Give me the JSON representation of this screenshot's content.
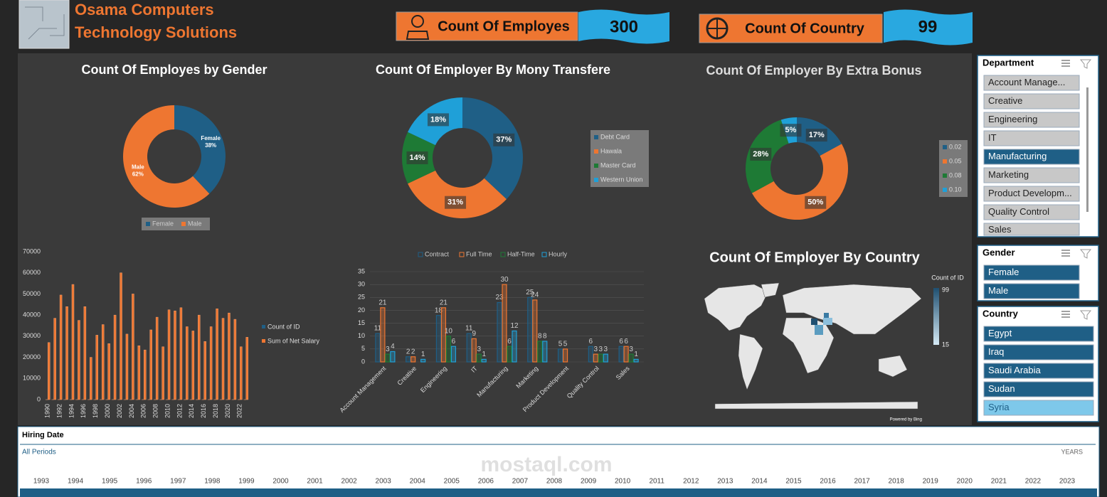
{
  "header": {
    "title_line1": "Osama Computers",
    "title_line2": "Technology Solutions"
  },
  "kpis": [
    {
      "label": "Count Of Employes",
      "value": 300
    },
    {
      "label": "Count Of Country",
      "value": 99
    }
  ],
  "chart_data": [
    {
      "type": "donut",
      "title": "Count Of Employes by Gender",
      "categories": [
        "Female",
        "Male"
      ],
      "values": [
        38,
        62
      ],
      "value_labels": [
        "38%",
        "62%"
      ],
      "colors": [
        "#1f5f86",
        "#ee7631"
      ],
      "show_category_in_label": true,
      "legend": "bottom"
    },
    {
      "type": "donut",
      "title": "Count Of Employer By Mony Transfere",
      "categories": [
        "Debt Card",
        "Hawala",
        "Master Card",
        "Western Union"
      ],
      "values": [
        37,
        31,
        14,
        18
      ],
      "value_labels": [
        "37%",
        "31%",
        "14%",
        "18%"
      ],
      "colors": [
        "#1f5f86",
        "#ee7631",
        "#1e7a35",
        "#1fa0d8"
      ],
      "legend": "right"
    },
    {
      "type": "donut",
      "title": "Count Of Employer By Extra Bonus",
      "categories": [
        "0.02",
        "0.05",
        "0.08",
        "0.10"
      ],
      "values": [
        17,
        50,
        28,
        5
      ],
      "value_labels": [
        "17%",
        "50%",
        "28%",
        "5%"
      ],
      "colors": [
        "#1f5f86",
        "#ee7631",
        "#1e7a35",
        "#1fa0d8"
      ],
      "legend": "right"
    },
    {
      "type": "bar",
      "categories": [
        "1990",
        null,
        "1992",
        null,
        "1994",
        null,
        "1996",
        null,
        "1998",
        null,
        "2000",
        null,
        "2002",
        null,
        "2004",
        null,
        "2006",
        null,
        "2008",
        null,
        "2010",
        null,
        "2012",
        null,
        "2014",
        null,
        "2016",
        null,
        "2018",
        null,
        "2020",
        null,
        "2022",
        null
      ],
      "series": [
        {
          "name": "Count of ID",
          "color": "#1f5f86",
          "values": [
            9,
            9,
            9,
            9,
            9,
            9,
            9,
            9,
            9,
            9,
            9,
            9,
            9,
            9,
            9,
            9,
            9,
            9,
            9,
            9,
            9,
            9,
            9,
            9,
            9,
            9,
            9,
            9,
            9,
            9,
            9,
            9,
            9,
            9
          ]
        },
        {
          "name": "Sum of Net Salary",
          "color": "#ee7631",
          "values": [
            27000,
            38500,
            49500,
            44000,
            54500,
            37500,
            44000,
            20000,
            30500,
            35500,
            26500,
            40000,
            60000,
            31000,
            50000,
            25500,
            23500,
            33000,
            39000,
            25000,
            42500,
            42000,
            43500,
            34500,
            32500,
            40000,
            27500,
            34500,
            43000,
            38500,
            41000,
            38000,
            25000,
            29500
          ]
        }
      ],
      "ylim": [
        0,
        70000
      ],
      "yticks": [
        0,
        10000,
        20000,
        30000,
        40000,
        50000,
        60000,
        70000
      ],
      "legend": "right"
    },
    {
      "type": "grouped_bar",
      "categories": [
        "Account Management",
        "Creative",
        "Engineering",
        "IT",
        "Manufacturing",
        "Marketing",
        "Product Development",
        "Quality Control",
        "Sales"
      ],
      "series": [
        {
          "name": "Contract",
          "color": "#1f5f86",
          "values": [
            11,
            2,
            18,
            11,
            23,
            25,
            5,
            6,
            6
          ]
        },
        {
          "name": "Full Time",
          "color": "#ee7631",
          "values": [
            21,
            2,
            21,
            9,
            30,
            24,
            5,
            3,
            6
          ]
        },
        {
          "name": "Half-Time",
          "color": "#1e7a35",
          "values": [
            3,
            null,
            10,
            3,
            6,
            8,
            null,
            3,
            3
          ]
        },
        {
          "name": "Hourly",
          "color": "#1fa0d8",
          "values": [
            4,
            1,
            6,
            1,
            12,
            8,
            null,
            3,
            1
          ]
        }
      ],
      "ylim": [
        0,
        35
      ],
      "yticks": [
        0,
        5,
        10,
        15,
        20,
        25,
        30,
        35
      ],
      "grid": true,
      "legend": "top"
    },
    {
      "type": "map",
      "title": "Count Of Employer By Country",
      "legend_title": "Count of ID",
      "scale_max": 99,
      "scale_min": 15,
      "colors": [
        "#1f4f70",
        "#d5eaf5"
      ],
      "credit": "Powered by Bing"
    }
  ],
  "slicers": [
    {
      "title": "Department",
      "items": [
        {
          "label": "Account Manage...",
          "selected": false
        },
        {
          "label": "Creative",
          "selected": false
        },
        {
          "label": "Engineering",
          "selected": false
        },
        {
          "label": "IT",
          "selected": false
        },
        {
          "label": "Manufacturing",
          "selected": true
        },
        {
          "label": "Marketing",
          "selected": false
        },
        {
          "label": "Product Developm...",
          "selected": false
        },
        {
          "label": "Quality Control",
          "selected": false
        },
        {
          "label": "Sales",
          "selected": false
        }
      ]
    },
    {
      "title": "Gender",
      "items": [
        {
          "label": "Female",
          "selected": true
        },
        {
          "label": "Male",
          "selected": true
        }
      ]
    },
    {
      "title": "Country",
      "items": [
        {
          "label": "Egypt",
          "selected": true
        },
        {
          "label": "Iraq",
          "selected": true
        },
        {
          "label": "Saudi Arabia",
          "selected": true
        },
        {
          "label": "Sudan",
          "selected": true
        },
        {
          "label": "Syria",
          "selected": false
        }
      ]
    }
  ],
  "timeline": {
    "title": "Hiring Date",
    "period": "All Periods",
    "level": "YEARS",
    "years": [
      1993,
      1994,
      1995,
      1996,
      1997,
      1998,
      1999,
      2000,
      2001,
      2002,
      2003,
      2004,
      2005,
      2006,
      2007,
      2008,
      2009,
      2010,
      2011,
      2012,
      2013,
      2014,
      2015,
      2016,
      2017,
      2018,
      2019,
      2020,
      2021,
      2022,
      2023
    ]
  },
  "watermark": "mostaql.com"
}
